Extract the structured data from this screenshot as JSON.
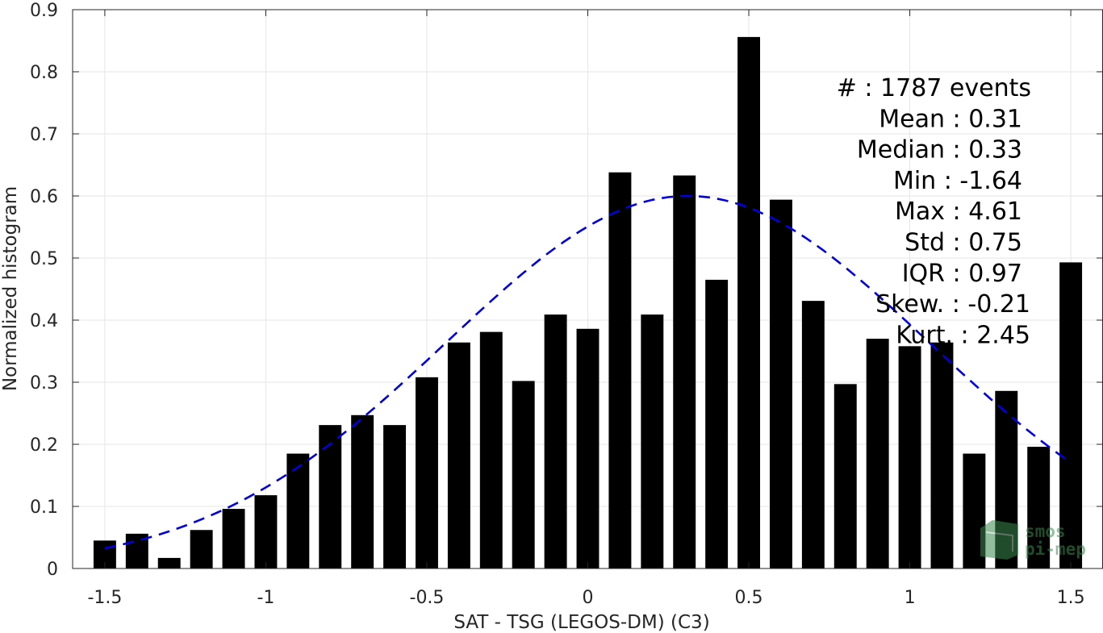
{
  "chart_data": {
    "type": "bar",
    "xlabel": "SAT - TSG (LEGOS-DM) (C3)",
    "ylabel": "Normalized histogram",
    "xlim": [
      -1.6,
      1.6
    ],
    "ylim": [
      0,
      0.9
    ],
    "xticks": [
      "-1.5",
      "-1",
      "-0.5",
      "0",
      "0.5",
      "1",
      "1.5"
    ],
    "yticks": [
      "0",
      "0.1",
      "0.2",
      "0.3",
      "0.4",
      "0.5",
      "0.6",
      "0.7",
      "0.8",
      "0.9"
    ],
    "grid": true,
    "bar_color": "#000000",
    "x": [
      -1.5,
      -1.4,
      -1.3,
      -1.2,
      -1.1,
      -1.0,
      -0.9,
      -0.8,
      -0.7,
      -0.6,
      -0.5,
      -0.4,
      -0.3,
      -0.2,
      -0.1,
      0.0,
      0.1,
      0.2,
      0.3,
      0.4,
      0.5,
      0.6,
      0.7,
      0.8,
      0.9,
      1.0,
      1.1,
      1.2,
      1.3,
      1.4,
      1.5
    ],
    "values": [
      0.045,
      0.056,
      0.017,
      0.062,
      0.096,
      0.118,
      0.185,
      0.231,
      0.247,
      0.231,
      0.308,
      0.364,
      0.381,
      0.302,
      0.409,
      0.386,
      0.638,
      0.409,
      0.633,
      0.465,
      0.856,
      0.594,
      0.431,
      0.297,
      0.37,
      0.358,
      0.364,
      0.185,
      0.286,
      0.196,
      0.493
    ],
    "fit_curve": {
      "style": "dashed",
      "color": "#0000e0",
      "mean": 0.31,
      "std": 0.75,
      "peak": 0.6,
      "x_range": [
        -1.5,
        1.5
      ]
    },
    "stats": [
      "#  : 1787 events",
      "Mean : 0.31",
      "Median : 0.33",
      "Min : -1.64",
      "Max : 4.61",
      "Std : 0.75",
      "IQR : 0.97",
      "Skew. : -0.21",
      "Kurt. : 2.45"
    ],
    "watermark": [
      "smos",
      "pi-mep"
    ]
  }
}
